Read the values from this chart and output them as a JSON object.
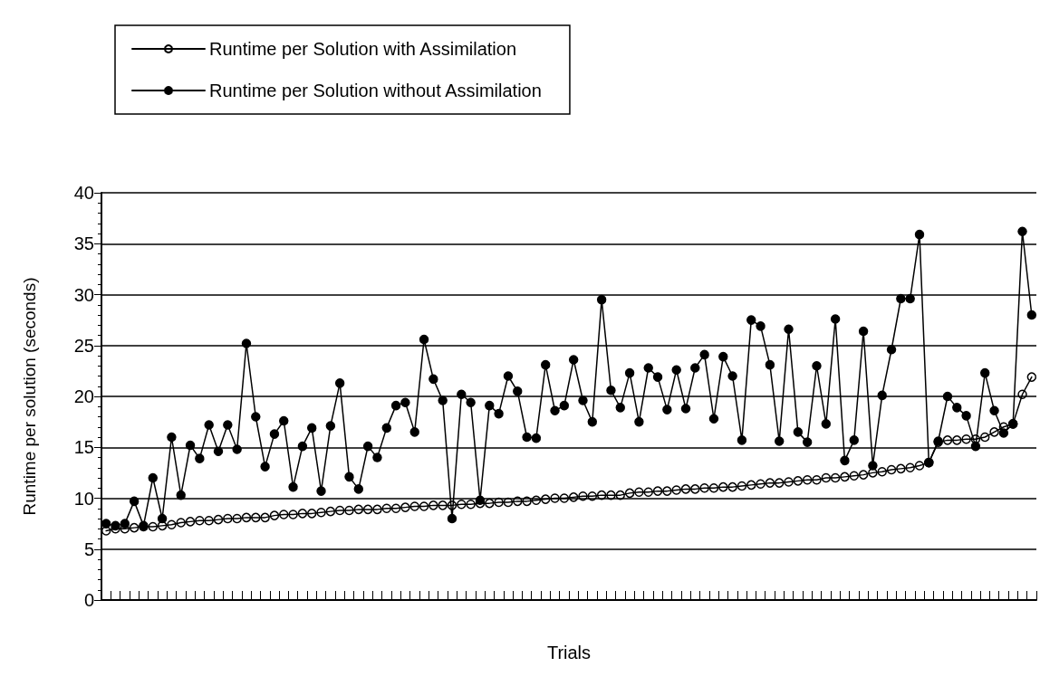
{
  "chart_data": {
    "type": "line",
    "xlabel": "Trials",
    "ylabel": "Runtime per solution (seconds)",
    "categories": [
      null,
      null,
      null,
      null,
      null,
      null,
      null,
      null,
      null,
      null,
      null,
      null,
      null,
      null,
      null,
      null,
      null,
      null,
      null,
      null,
      null,
      null,
      null,
      null,
      null,
      null,
      null,
      null,
      null,
      null,
      null,
      null,
      null,
      null,
      null,
      null,
      null,
      null,
      null,
      null,
      null,
      null,
      null,
      null,
      null,
      null,
      null,
      null,
      null,
      null,
      null,
      null,
      null,
      null,
      null,
      null,
      null,
      null,
      null,
      null,
      null,
      null,
      null,
      null,
      null,
      null,
      null,
      null,
      null,
      null,
      null,
      null,
      null,
      null,
      null,
      null,
      null,
      null,
      null,
      null,
      null,
      null,
      null,
      null,
      null,
      null,
      null,
      null,
      null,
      null,
      null,
      null,
      null,
      null,
      null,
      null,
      null,
      null,
      null,
      null
    ],
    "series": [
      {
        "name": "Runtime per Solution with Assimilation",
        "color": "#000000",
        "marker": "open circle",
        "values": [
          6.8,
          7.0,
          7.0,
          7.1,
          7.2,
          7.2,
          7.3,
          7.4,
          7.6,
          7.7,
          7.8,
          7.8,
          7.9,
          8.0,
          8.0,
          8.1,
          8.1,
          8.1,
          8.3,
          8.4,
          8.4,
          8.5,
          8.5,
          8.6,
          8.7,
          8.8,
          8.8,
          8.9,
          8.9,
          8.9,
          9.0,
          9.0,
          9.1,
          9.2,
          9.2,
          9.3,
          9.3,
          9.3,
          9.4,
          9.4,
          9.5,
          9.5,
          9.6,
          9.6,
          9.7,
          9.7,
          9.8,
          9.9,
          10.0,
          10.0,
          10.1,
          10.2,
          10.2,
          10.3,
          10.3,
          10.3,
          10.5,
          10.6,
          10.6,
          10.7,
          10.7,
          10.8,
          10.9,
          10.9,
          11.0,
          11.0,
          11.1,
          11.1,
          11.2,
          11.3,
          11.4,
          11.5,
          11.5,
          11.6,
          11.7,
          11.8,
          11.8,
          12.0,
          12.0,
          12.1,
          12.2,
          12.3,
          12.5,
          12.6,
          12.8,
          12.9,
          13.0,
          13.2,
          13.5,
          15.5,
          15.7,
          15.7,
          15.8,
          15.8,
          16.0,
          16.5,
          17.0,
          17.3,
          20.2,
          21.9
        ]
      },
      {
        "name": "Runtime per Solution without Assimilation",
        "color": "#000000",
        "marker": "circle",
        "values": [
          7.5,
          7.3,
          7.5,
          9.7,
          7.3,
          12,
          8,
          16,
          10.3,
          15.2,
          13.9,
          17.2,
          14.6,
          17.2,
          14.8,
          25.2,
          18,
          13.1,
          16.3,
          17.6,
          11.1,
          15.1,
          16.9,
          10.7,
          17.1,
          21.3,
          12.1,
          10.9,
          15.1,
          14.0,
          16.9,
          19.1,
          19.4,
          16.5,
          25.6,
          21.7,
          19.6,
          8.0,
          20.2,
          19.4,
          9.8,
          19.1,
          18.3,
          22.0,
          20.5,
          16.0,
          15.9,
          23.1,
          18.6,
          19.1,
          23.6,
          19.6,
          17.5,
          29.5,
          20.6,
          18.9,
          22.3,
          17.5,
          22.8,
          21.9,
          18.7,
          22.6,
          18.8,
          22.8,
          24.1,
          17.8,
          23.9,
          22.0,
          15.7,
          27.5,
          26.9,
          23.1,
          15.6,
          26.6,
          16.5,
          15.5,
          23.0,
          17.3,
          27.6,
          13.7,
          15.7,
          26.4,
          13.2,
          20.1,
          24.6,
          29.6,
          29.6,
          35.9,
          13.5,
          15.6,
          20.0,
          18.9,
          18.1,
          15.1,
          22.3,
          18.6,
          16.4,
          17.3,
          36.2,
          28
        ]
      }
    ],
    "ylim": [
      0,
      40
    ],
    "yticks": [
      0,
      5,
      10,
      15,
      20,
      25,
      30,
      35,
      40
    ],
    "grid": "y",
    "legend": "top left",
    "line_style": "solid"
  }
}
